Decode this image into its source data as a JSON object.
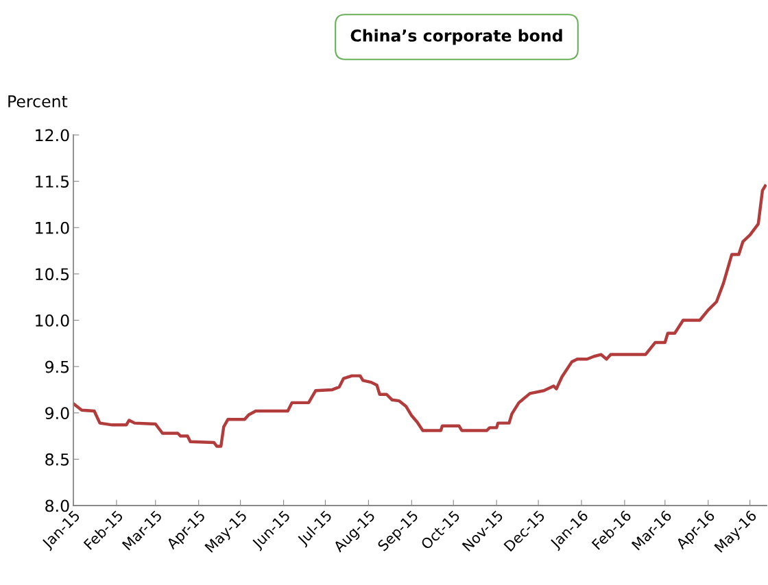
{
  "chart_data": {
    "type": "line",
    "title": "China’s corporate bond",
    "ylabel": "Percent",
    "x": [
      "2015-01-01",
      "2015-01-07",
      "2015-01-16",
      "2015-01-20",
      "2015-01-29",
      "2015-02-08",
      "2015-02-10",
      "2015-02-14",
      "2015-03-01",
      "2015-03-06",
      "2015-03-17",
      "2015-03-19",
      "2015-03-24",
      "2015-03-26",
      "2015-04-12",
      "2015-04-14",
      "2015-04-17",
      "2015-04-19",
      "2015-04-22",
      "2015-05-04",
      "2015-05-07",
      "2015-05-12",
      "2015-06-04",
      "2015-06-07",
      "2015-06-19",
      "2015-06-24",
      "2015-07-06",
      "2015-07-11",
      "2015-07-14",
      "2015-07-20",
      "2015-07-26",
      "2015-07-28",
      "2015-08-03",
      "2015-08-07",
      "2015-08-09",
      "2015-08-14",
      "2015-08-18",
      "2015-08-23",
      "2015-08-28",
      "2015-09-01",
      "2015-09-05",
      "2015-09-09",
      "2015-09-22",
      "2015-09-23",
      "2015-10-05",
      "2015-10-07",
      "2015-10-25",
      "2015-10-27",
      "2015-11-01",
      "2015-11-02",
      "2015-11-10",
      "2015-11-12",
      "2015-11-17",
      "2015-11-25",
      "2015-12-05",
      "2015-12-12",
      "2015-12-14",
      "2015-12-18",
      "2015-12-25",
      "2015-12-29",
      "2016-01-05",
      "2016-01-10",
      "2016-01-15",
      "2016-01-19",
      "2016-01-22",
      "2016-02-16",
      "2016-02-23",
      "2016-03-01",
      "2016-03-03",
      "2016-03-08",
      "2016-03-14",
      "2016-03-26",
      "2016-04-01",
      "2016-04-07",
      "2016-04-12",
      "2016-04-18",
      "2016-04-23",
      "2016-04-26",
      "2016-05-01",
      "2016-05-07",
      "2016-05-10",
      "2016-05-12"
    ],
    "series": [
      {
        "color": "#b23b3b",
        "values": [
          9.1,
          9.03,
          9.02,
          8.89,
          8.87,
          8.87,
          8.92,
          8.89,
          8.88,
          8.78,
          8.78,
          8.75,
          8.75,
          8.69,
          8.68,
          8.64,
          8.64,
          8.85,
          8.93,
          8.93,
          8.98,
          9.02,
          9.02,
          9.11,
          9.11,
          9.24,
          9.25,
          9.28,
          9.37,
          9.4,
          9.4,
          9.35,
          9.33,
          9.3,
          9.2,
          9.2,
          9.14,
          9.13,
          9.07,
          8.97,
          8.9,
          8.81,
          8.81,
          8.86,
          8.86,
          8.81,
          8.81,
          8.84,
          8.84,
          8.89,
          8.89,
          8.99,
          9.11,
          9.21,
          9.24,
          9.29,
          9.26,
          9.39,
          9.55,
          9.58,
          9.58,
          9.61,
          9.63,
          9.58,
          9.63,
          9.63,
          9.76,
          9.76,
          9.86,
          9.86,
          10.0,
          10.0,
          10.11,
          10.2,
          10.4,
          10.71,
          10.71,
          10.85,
          10.92,
          11.04,
          11.4,
          11.45
        ]
      }
    ],
    "xlim": [
      "2015-01-01",
      "2016-05-13"
    ],
    "ylim": [
      8.0,
      12.0
    ],
    "yticks": [
      {
        "value": 8.0,
        "label": "8.0"
      },
      {
        "value": 8.5,
        "label": "8.5"
      },
      {
        "value": 9.0,
        "label": "9.0"
      },
      {
        "value": 9.5,
        "label": "9.5"
      },
      {
        "value": 10.0,
        "label": "10.0"
      },
      {
        "value": 10.5,
        "label": "10.5"
      },
      {
        "value": 11.0,
        "label": "11.0"
      },
      {
        "value": 11.5,
        "label": "11.5"
      },
      {
        "value": 12.0,
        "label": "12.0"
      }
    ],
    "xticks": [
      {
        "value": "2015-01-01",
        "label": "Jan-15"
      },
      {
        "value": "2015-02-01",
        "label": "Feb-15"
      },
      {
        "value": "2015-03-01",
        "label": "Mar-15"
      },
      {
        "value": "2015-04-01",
        "label": "Apr-15"
      },
      {
        "value": "2015-05-01",
        "label": "May-15"
      },
      {
        "value": "2015-06-01",
        "label": "Jun-15"
      },
      {
        "value": "2015-07-01",
        "label": "Jul-15"
      },
      {
        "value": "2015-08-01",
        "label": "Aug-15"
      },
      {
        "value": "2015-09-01",
        "label": "Sep-15"
      },
      {
        "value": "2015-10-01",
        "label": "Oct-15"
      },
      {
        "value": "2015-11-01",
        "label": "Nov-15"
      },
      {
        "value": "2015-12-01",
        "label": "Dec-15"
      },
      {
        "value": "2016-01-01",
        "label": "Jan-16"
      },
      {
        "value": "2016-02-01",
        "label": "Feb-16"
      },
      {
        "value": "2016-03-01",
        "label": "Mar-16"
      },
      {
        "value": "2016-04-01",
        "label": "Apr-16"
      },
      {
        "value": "2016-05-01",
        "label": "May-16"
      }
    ],
    "grid": false
  }
}
